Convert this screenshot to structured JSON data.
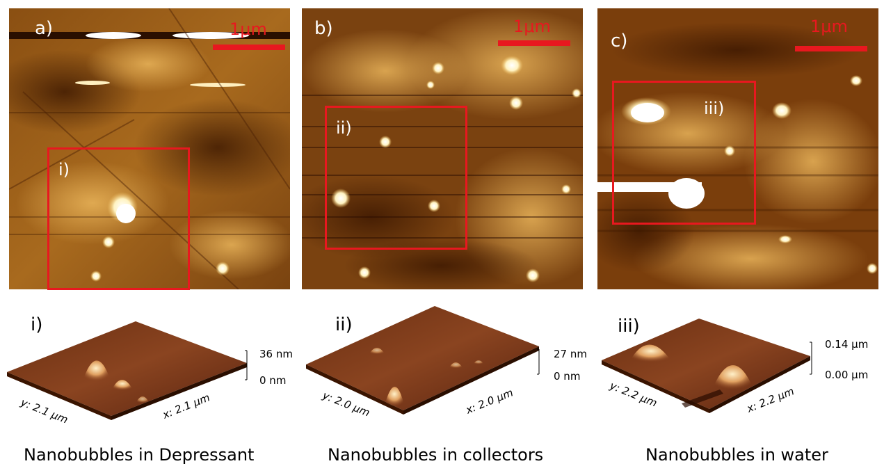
{
  "panels": [
    {
      "letter": "a)",
      "scale": "1μm",
      "roi": "i)",
      "sub_letter": "i)",
      "z_max": "36 nm",
      "z_min": "0 nm",
      "y_axis": "y: 2.1 μm",
      "x_axis": "x: 2.1 μm",
      "caption": "Nanobubbles in Depressant"
    },
    {
      "letter": "b)",
      "scale": "1μm",
      "roi": "ii)",
      "sub_letter": "ii)",
      "z_max": "27 nm",
      "z_min": "0 nm",
      "y_axis": "y: 2.0 μm",
      "x_axis": "x: 2.0 μm",
      "caption": "Nanobubbles in collectors"
    },
    {
      "letter": "c)",
      "scale": "1μm",
      "roi": "iii)",
      "sub_letter": "iii)",
      "z_max": "0.14 μm",
      "z_min": "0.00 μm",
      "y_axis": "y: 2.2 μm",
      "x_axis": "x: 2.2 μm",
      "caption": "Nanobubbles in water"
    }
  ],
  "colors": {
    "afm_dark": "#3a1600",
    "afm_mid": "#a8661a",
    "afm_light": "#fff4c0",
    "annotation_red": "#e8181f"
  }
}
